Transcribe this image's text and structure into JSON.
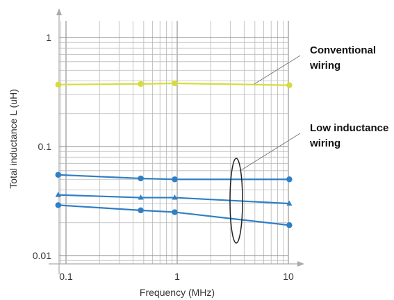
{
  "chart_data": {
    "type": "line",
    "xlabel": "Frequency (MHz)",
    "ylabel": "Total inductance L (uH)",
    "x_scale": "log",
    "y_scale": "log",
    "xlim": [
      0.08,
      12
    ],
    "ylim": [
      0.0085,
      1.6
    ],
    "x_ticks": [
      0.1,
      1,
      10
    ],
    "x_tick_labels": [
      "0.1",
      "1",
      "10"
    ],
    "y_ticks": [
      1,
      0.1,
      0.01
    ],
    "y_tick_labels": [
      "1",
      "0.1",
      "0.01"
    ],
    "grid": true,
    "series": [
      {
        "color": "#d7dc3c",
        "marker": "circle",
        "points": [
          [
            0.085,
            0.37
          ],
          [
            0.47,
            0.375
          ],
          [
            0.95,
            0.38
          ],
          [
            10.2,
            0.365
          ]
        ]
      },
      {
        "color": "#2e7fc6",
        "marker": "circle",
        "points": [
          [
            0.085,
            0.055
          ],
          [
            0.47,
            0.051
          ],
          [
            0.95,
            0.05
          ],
          [
            10.2,
            0.05
          ]
        ]
      },
      {
        "color": "#2e7fc6",
        "marker": "triangle",
        "points": [
          [
            0.085,
            0.036
          ],
          [
            0.47,
            0.034
          ],
          [
            0.95,
            0.034
          ],
          [
            10.2,
            0.03
          ]
        ]
      },
      {
        "color": "#2e7fc6",
        "marker": "circle",
        "points": [
          [
            0.085,
            0.029
          ],
          [
            0.47,
            0.026
          ],
          [
            0.95,
            0.025
          ],
          [
            10.2,
            0.019
          ]
        ]
      }
    ],
    "annotations": [
      {
        "lines": [
          "Conventional",
          "wiring"
        ]
      },
      {
        "lines": [
          "Low inductance",
          "wiring"
        ]
      }
    ]
  }
}
